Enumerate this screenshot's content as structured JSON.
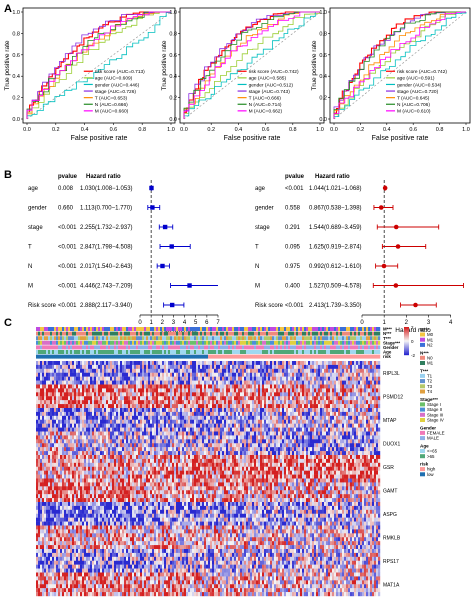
{
  "panel_labels": [
    "A",
    "B",
    "C"
  ],
  "chart_data": [
    {
      "type": "line",
      "panel": "A",
      "xlabel": "False positive rate",
      "ylabel": "True positive rate",
      "ticks": [
        "0.0",
        "0.2",
        "0.4",
        "0.6",
        "0.8",
        "1.0"
      ],
      "xlim": [
        0,
        1
      ],
      "ylim": [
        0,
        1
      ],
      "series": [
        {
          "name": "risk score (AUC=0.713)",
          "color": "#ff0000",
          "auc": 0.713
        },
        {
          "name": "age (AUC=0.609)",
          "color": "#9acd32",
          "auc": 0.609
        },
        {
          "name": "gender (AUC=0.446)",
          "color": "#00bfbf",
          "auc": 0.446
        },
        {
          "name": "stage (AUC=0.726)",
          "color": "#8a2be2",
          "auc": 0.726
        },
        {
          "name": "T (AUC=0.653)",
          "color": "#ff8c00",
          "auc": 0.653
        },
        {
          "name": "N (AUC=0.666)",
          "color": "#228b22",
          "auc": 0.666
        },
        {
          "name": "M (AUC=0.660)",
          "color": "#ff00ff",
          "auc": 0.66
        }
      ]
    },
    {
      "type": "line",
      "panel": "A",
      "xlabel": "False positive rate",
      "ylabel": "True positive rate",
      "ticks": [
        "0.0",
        "0.2",
        "0.4",
        "0.6",
        "0.8",
        "1.0"
      ],
      "xlim": [
        0,
        1
      ],
      "ylim": [
        0,
        1
      ],
      "series": [
        {
          "name": "risk score (AUC=0.742)",
          "color": "#ff0000",
          "auc": 0.742
        },
        {
          "name": "age (AUC=0.585)",
          "color": "#9acd32",
          "auc": 0.585
        },
        {
          "name": "gender (AUC=0.512)",
          "color": "#00bfbf",
          "auc": 0.512
        },
        {
          "name": "stage (AUC=0.743)",
          "color": "#8a2be2",
          "auc": 0.743
        },
        {
          "name": "T (AUC=0.666)",
          "color": "#ff8c00",
          "auc": 0.666
        },
        {
          "name": "N (AUC=0.714)",
          "color": "#228b22",
          "auc": 0.714
        },
        {
          "name": "M (AUC=0.662)",
          "color": "#ff00ff",
          "auc": 0.662
        }
      ]
    },
    {
      "type": "line",
      "panel": "A",
      "xlabel": "False positive rate",
      "ylabel": "True positive rate",
      "ticks": [
        "0.0",
        "0.2",
        "0.4",
        "0.6",
        "0.8",
        "1.0"
      ],
      "xlim": [
        0,
        1
      ],
      "ylim": [
        0,
        1
      ],
      "series": [
        {
          "name": "risk score (AUC=0.742)",
          "color": "#ff0000",
          "auc": 0.742
        },
        {
          "name": "age (AUC=0.591)",
          "color": "#9acd32",
          "auc": 0.591
        },
        {
          "name": "gender (AUC=0.534)",
          "color": "#00bfbf",
          "auc": 0.534
        },
        {
          "name": "stage (AUC=0.720)",
          "color": "#8a2be2",
          "auc": 0.72
        },
        {
          "name": "T (AUC=0.645)",
          "color": "#ff8c00",
          "auc": 0.645
        },
        {
          "name": "N (AUC=0.706)",
          "color": "#228b22",
          "auc": 0.706
        },
        {
          "name": "M (AUC=0.610)",
          "color": "#ff00ff",
          "auc": 0.61
        }
      ]
    },
    {
      "type": "forest",
      "panel": "B",
      "headers": [
        "pvalue",
        "Hazard ratio"
      ],
      "xlabel": "Hazard ratio",
      "xticks": [
        "0",
        "1",
        "2",
        "3",
        "4",
        "5",
        "6",
        "7"
      ],
      "xlim": [
        0,
        7
      ],
      "color": "#0000cc",
      "rows": [
        {
          "label": "age",
          "p": "0.008",
          "text": "1.030(1.008−1.053)",
          "hr": 1.03,
          "lo": 1.008,
          "hi": 1.053
        },
        {
          "label": "gender",
          "p": "0.660",
          "text": "1.113(0.700−1.770)",
          "hr": 1.113,
          "lo": 0.7,
          "hi": 1.77
        },
        {
          "label": "stage",
          "p": "<0.001",
          "text": "2.255(1.732−2.937)",
          "hr": 2.255,
          "lo": 1.732,
          "hi": 2.937
        },
        {
          "label": "T",
          "p": "<0.001",
          "text": "2.847(1.798−4.508)",
          "hr": 2.847,
          "lo": 1.798,
          "hi": 4.508
        },
        {
          "label": "N",
          "p": "<0.001",
          "text": "2.017(1.540−2.643)",
          "hr": 2.017,
          "lo": 1.54,
          "hi": 2.643
        },
        {
          "label": "M",
          "p": "<0.001",
          "text": "4.446(2.743−7.209)",
          "hr": 4.446,
          "lo": 2.743,
          "hi": 7.209
        },
        {
          "label": "Risk score",
          "p": "<0.001",
          "text": "2.888(2.117−3.940)",
          "hr": 2.888,
          "lo": 2.117,
          "hi": 3.94
        }
      ]
    },
    {
      "type": "forest",
      "panel": "B",
      "headers": [
        "pvalue",
        "Hazard ratio"
      ],
      "xlabel": "Hazard ratio",
      "xticks": [
        "0",
        "1",
        "2",
        "3",
        "4"
      ],
      "xlim": [
        0,
        4.6
      ],
      "color": "#cc0000",
      "rows": [
        {
          "label": "age",
          "p": "<0.001",
          "text": "1.044(1.021−1.068)",
          "hr": 1.044,
          "lo": 1.021,
          "hi": 1.068
        },
        {
          "label": "gender",
          "p": "0.558",
          "text": "0.867(0.538−1.398)",
          "hr": 0.867,
          "lo": 0.538,
          "hi": 1.398
        },
        {
          "label": "stage",
          "p": "0.291",
          "text": "1.544(0.689−3.459)",
          "hr": 1.544,
          "lo": 0.689,
          "hi": 3.459
        },
        {
          "label": "T",
          "p": "0.095",
          "text": "1.625(0.919−2.874)",
          "hr": 1.625,
          "lo": 0.919,
          "hi": 2.874
        },
        {
          "label": "N",
          "p": "0.975",
          "text": "0.992(0.612−1.610)",
          "hr": 0.992,
          "lo": 0.612,
          "hi": 1.61
        },
        {
          "label": "M",
          "p": "0.400",
          "text": "1.527(0.509−4.578)",
          "hr": 1.527,
          "lo": 0.509,
          "hi": 4.578
        },
        {
          "label": "Risk score",
          "p": "<0.001",
          "text": "2.413(1.739−3.350)",
          "hr": 2.413,
          "lo": 1.739,
          "hi": 3.35
        }
      ]
    },
    {
      "type": "heatmap",
      "panel": "C",
      "genes": [
        "RIPL3L",
        "PSMD12",
        "MTAP",
        "DUOX1",
        "GSR",
        "GAMT",
        "ASPG",
        "RMKLB",
        "RPS17",
        "MAT1A"
      ],
      "annotation_rows": [
        "M***",
        "N***",
        "T***",
        "Stage***",
        "Gender",
        "Age",
        "risk"
      ],
      "legend": [
        {
          "title": "M***",
          "items": [
            {
              "label": "M0",
              "color": "#f4c542"
            },
            {
              "label": "M1",
              "color": "#c04ae0"
            },
            {
              "label": "N2",
              "color": "#3b6fd8"
            }
          ]
        },
        {
          "title": "N***",
          "items": [
            {
              "label": "N0",
              "color": "#ef8a7c"
            },
            {
              "label": "M1",
              "color": "#2f7e5e"
            }
          ]
        },
        {
          "title": "T***",
          "items": [
            {
              "label": "T1",
              "color": "#9ad1f0"
            },
            {
              "label": "T2",
              "color": "#5f8fcf"
            },
            {
              "label": "T3",
              "color": "#b4c86a"
            },
            {
              "label": "T4",
              "color": "#e0a040"
            }
          ]
        },
        {
          "title": "Stage***",
          "items": [
            {
              "label": "Stage I",
              "color": "#6ac06a"
            },
            {
              "label": "Stage II",
              "color": "#4a8fd8"
            },
            {
              "label": "Stage III",
              "color": "#d870c8"
            },
            {
              "label": "Stage IV",
              "color": "#e0d040"
            }
          ]
        },
        {
          "title": "Gender",
          "items": [
            {
              "label": "FEMALE",
              "color": "#f07ab8"
            },
            {
              "label": "MALE",
              "color": "#8fb0e8"
            }
          ]
        },
        {
          "title": "Age",
          "items": [
            {
              "label": "<=65",
              "color": "#a0d8f0"
            },
            {
              "label": ">65",
              "color": "#50a878"
            }
          ]
        },
        {
          "title": "risk",
          "items": [
            {
              "label": "high",
              "color": "#ff9a9a"
            },
            {
              "label": "low",
              "color": "#1f6fb0"
            }
          ]
        }
      ],
      "colorbar_ticks": [
        "2",
        "0",
        "-2"
      ],
      "colors": {
        "high": "#d42020",
        "mid": "#f5f5f5",
        "low": "#2a2ad0"
      }
    }
  ]
}
